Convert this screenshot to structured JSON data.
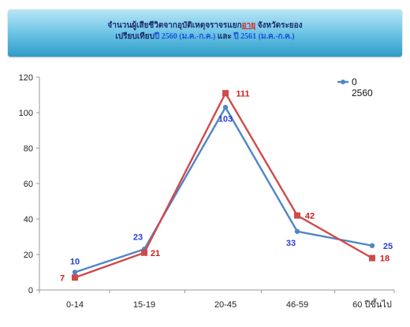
{
  "banner": {
    "line1_a": "จำนวนผู้เสียชีวิตจากอุบัติเหตุจราจรแยก",
    "line1_b": "อายุ",
    "line1_c": " จังหวัดระยอง",
    "line2_a": "เปรียบเทียบ",
    "line2_b": "ปี 2560 (ม.ค.-ก.ค.)",
    "line2_c": " และ ",
    "line2_d": "ปี 2561 (ม.ค.-ก.ค.)"
  },
  "chart_data": {
    "type": "line",
    "categories": [
      "0-14",
      "15-19",
      "20-45",
      "46-59",
      "60 ปีขึ้นไป"
    ],
    "series": [
      {
        "name": "0",
        "color": "#4f86c6",
        "label_color": "#2a3fd0",
        "values": [
          10,
          23,
          103,
          33,
          25
        ]
      },
      {
        "name": "",
        "color": "#d04a4a",
        "label_color": "#d02020",
        "values": [
          7,
          21,
          111,
          42,
          18
        ]
      }
    ],
    "legend_lines": [
      "0",
      "2560"
    ],
    "legend_position": "top-right",
    "ylim": [
      0,
      120
    ],
    "yticks": [
      0,
      20,
      40,
      60,
      80,
      100,
      120
    ],
    "grid": false
  }
}
